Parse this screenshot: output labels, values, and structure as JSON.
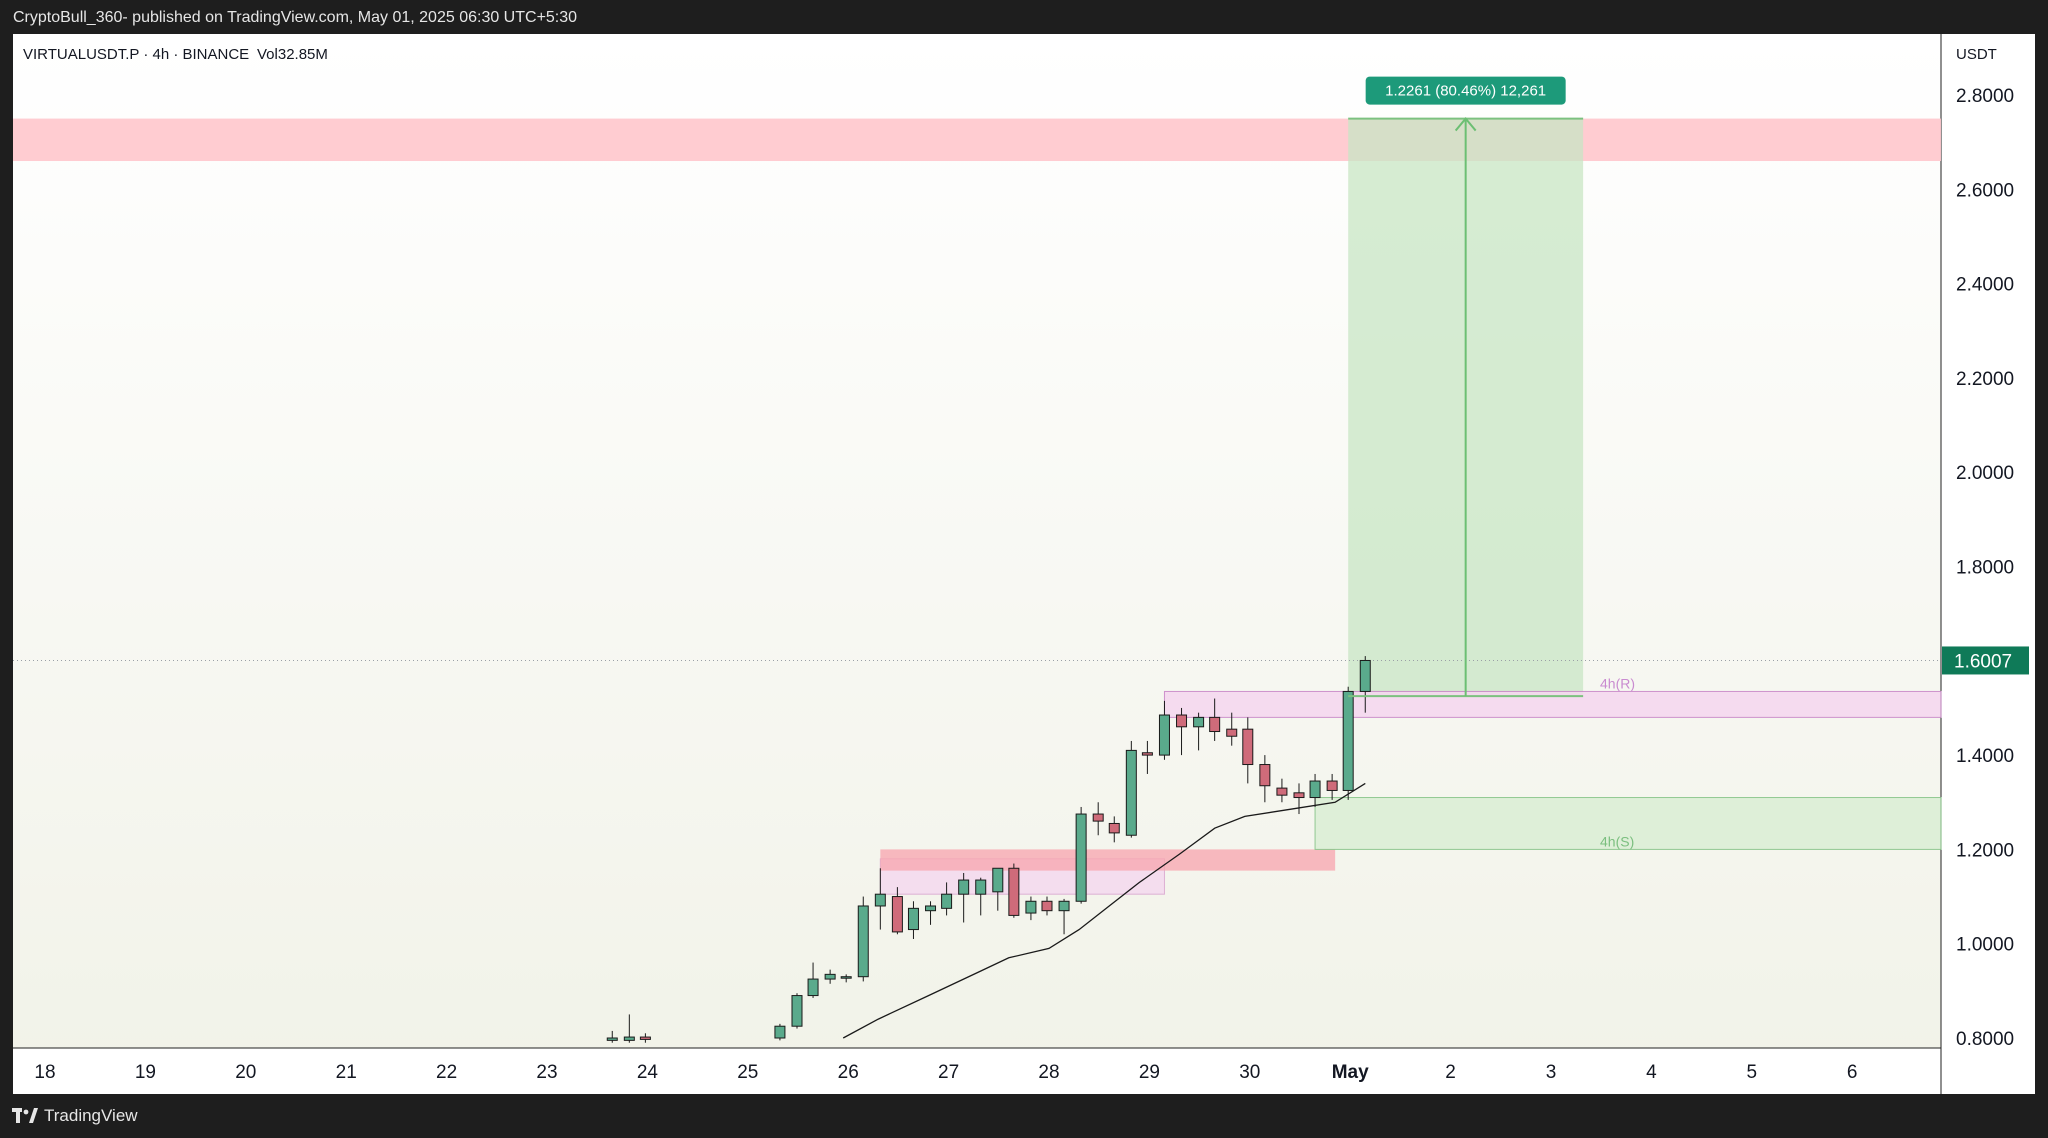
{
  "header": {
    "published_by": "CryptoBull_360- published on TradingView.com, May 01, 2025 06:30 UTC+5:30"
  },
  "footer": {
    "brand": "TradingView"
  },
  "colors": {
    "up": "#5aaa8c",
    "down": "#cf6b7a",
    "sma": "#1a1a1a",
    "resistance_zone": "#ffc7cc",
    "target_zone": "#c8e6c4",
    "last_price_label": "#0f7a58",
    "pink_zone": "#f5d9ef"
  },
  "chart_data": {
    "type": "candlestick",
    "symbol_line": "VIRTUALUSDT.P · 4h · BINANCE",
    "volume_label": "Vol",
    "volume_value": "32.85",
    "volume_unit": "M",
    "currency": "USDT",
    "ylim": [
      0.8,
      2.8
    ],
    "y_ticks": [
      "0.8000",
      "1.0000",
      "1.2000",
      "1.4000",
      "1.6000",
      "1.8000",
      "2.0000",
      "2.2000",
      "2.4000",
      "2.6000",
      "2.8000"
    ],
    "x_ticks": [
      "18",
      "19",
      "20",
      "21",
      "22",
      "23",
      "24",
      "25",
      "26",
      "27",
      "28",
      "29",
      "30",
      "May",
      "2",
      "3",
      "4",
      "5",
      "6"
    ],
    "last_price": "1.6007",
    "candles": [
      {
        "t": 23.65,
        "o": 0.795,
        "h": 0.815,
        "l": 0.79,
        "c": 0.8
      },
      {
        "t": 23.82,
        "o": 0.795,
        "h": 0.85,
        "l": 0.79,
        "c": 0.802
      },
      {
        "t": 23.98,
        "o": 0.802,
        "h": 0.81,
        "l": 0.79,
        "c": 0.797
      },
      {
        "t": 25.32,
        "o": 0.8,
        "h": 0.83,
        "l": 0.795,
        "c": 0.825
      },
      {
        "t": 25.49,
        "o": 0.825,
        "h": 0.895,
        "l": 0.82,
        "c": 0.89
      },
      {
        "t": 25.65,
        "o": 0.89,
        "h": 0.96,
        "l": 0.885,
        "c": 0.925
      },
      {
        "t": 25.82,
        "o": 0.925,
        "h": 0.945,
        "l": 0.915,
        "c": 0.935
      },
      {
        "t": 25.98,
        "o": 0.928,
        "h": 0.935,
        "l": 0.918,
        "c": 0.93
      },
      {
        "t": 26.15,
        "o": 0.93,
        "h": 1.1,
        "l": 0.92,
        "c": 1.08
      },
      {
        "t": 26.32,
        "o": 1.08,
        "h": 1.16,
        "l": 1.03,
        "c": 1.105
      },
      {
        "t": 26.49,
        "o": 1.1,
        "h": 1.12,
        "l": 1.02,
        "c": 1.025
      },
      {
        "t": 26.65,
        "o": 1.03,
        "h": 1.09,
        "l": 1.01,
        "c": 1.075
      },
      {
        "t": 26.82,
        "o": 1.07,
        "h": 1.09,
        "l": 1.04,
        "c": 1.08
      },
      {
        "t": 26.98,
        "o": 1.075,
        "h": 1.13,
        "l": 1.06,
        "c": 1.105
      },
      {
        "t": 27.15,
        "o": 1.105,
        "h": 1.15,
        "l": 1.045,
        "c": 1.135
      },
      {
        "t": 27.32,
        "o": 1.105,
        "h": 1.14,
        "l": 1.06,
        "c": 1.135
      },
      {
        "t": 27.49,
        "o": 1.11,
        "h": 1.16,
        "l": 1.07,
        "c": 1.16
      },
      {
        "t": 27.65,
        "o": 1.16,
        "h": 1.17,
        "l": 1.055,
        "c": 1.06
      },
      {
        "t": 27.82,
        "o": 1.065,
        "h": 1.1,
        "l": 1.05,
        "c": 1.09
      },
      {
        "t": 27.98,
        "o": 1.09,
        "h": 1.1,
        "l": 1.06,
        "c": 1.07
      },
      {
        "t": 28.15,
        "o": 1.07,
        "h": 1.095,
        "l": 1.02,
        "c": 1.09
      },
      {
        "t": 28.32,
        "o": 1.09,
        "h": 1.29,
        "l": 1.085,
        "c": 1.275
      },
      {
        "t": 28.49,
        "o": 1.275,
        "h": 1.3,
        "l": 1.23,
        "c": 1.26
      },
      {
        "t": 28.65,
        "o": 1.255,
        "h": 1.27,
        "l": 1.215,
        "c": 1.235
      },
      {
        "t": 28.82,
        "o": 1.23,
        "h": 1.43,
        "l": 1.225,
        "c": 1.41
      },
      {
        "t": 28.98,
        "o": 1.405,
        "h": 1.43,
        "l": 1.36,
        "c": 1.4
      },
      {
        "t": 29.15,
        "o": 1.4,
        "h": 1.515,
        "l": 1.39,
        "c": 1.485
      },
      {
        "t": 29.32,
        "o": 1.485,
        "h": 1.5,
        "l": 1.4,
        "c": 1.46
      },
      {
        "t": 29.49,
        "o": 1.46,
        "h": 1.49,
        "l": 1.41,
        "c": 1.48
      },
      {
        "t": 29.65,
        "o": 1.48,
        "h": 1.52,
        "l": 1.43,
        "c": 1.45
      },
      {
        "t": 29.82,
        "o": 1.455,
        "h": 1.49,
        "l": 1.42,
        "c": 1.44
      },
      {
        "t": 29.98,
        "o": 1.455,
        "h": 1.48,
        "l": 1.34,
        "c": 1.38
      },
      {
        "t": 30.15,
        "o": 1.38,
        "h": 1.4,
        "l": 1.3,
        "c": 1.335
      },
      {
        "t": 30.32,
        "o": 1.33,
        "h": 1.35,
        "l": 1.3,
        "c": 1.315
      },
      {
        "t": 30.49,
        "o": 1.32,
        "h": 1.34,
        "l": 1.275,
        "c": 1.31
      },
      {
        "t": 30.65,
        "o": 1.31,
        "h": 1.36,
        "l": 1.29,
        "c": 1.345
      },
      {
        "t": 30.82,
        "o": 1.345,
        "h": 1.36,
        "l": 1.305,
        "c": 1.325
      },
      {
        "t": 30.98,
        "o": 1.325,
        "h": 1.545,
        "l": 1.305,
        "c": 1.535
      },
      {
        "t": 31.15,
        "o": 1.535,
        "h": 1.61,
        "l": 1.49,
        "c": 1.6007
      }
    ],
    "sma": {
      "t": [
        25.95,
        26.3,
        26.8,
        27.3,
        27.6,
        28.0,
        28.3,
        28.6,
        28.9,
        29.3,
        29.65,
        29.95,
        30.4,
        30.85,
        31.15
      ],
      "v": [
        0.8,
        0.84,
        0.89,
        0.94,
        0.97,
        0.99,
        1.03,
        1.08,
        1.13,
        1.19,
        1.245,
        1.27,
        1.285,
        1.3,
        1.34
      ]
    },
    "zones": {
      "resistance": {
        "y_low": 2.66,
        "y_high": 2.75
      },
      "demand": {
        "t_start": 26.32,
        "t_end": 30.85,
        "y_low": 1.155,
        "y_high": 1.2
      },
      "pink_small": {
        "t_start": 26.32,
        "t_end": 29.15,
        "y_low": 1.105,
        "y_high": 1.18
      },
      "r_4h": {
        "t_start": 29.15,
        "y_low": 1.48,
        "y_high": 1.535,
        "label": "4h(R)"
      },
      "s_4h": {
        "t_start": 30.65,
        "y_low": 1.2,
        "y_high": 1.31,
        "label": "4h(S)"
      }
    },
    "long_position": {
      "t_start": 30.98,
      "t_end": 33.32,
      "entry": 1.525,
      "target": 2.75,
      "label": "1.2261 (80.46%) 12,261"
    }
  }
}
